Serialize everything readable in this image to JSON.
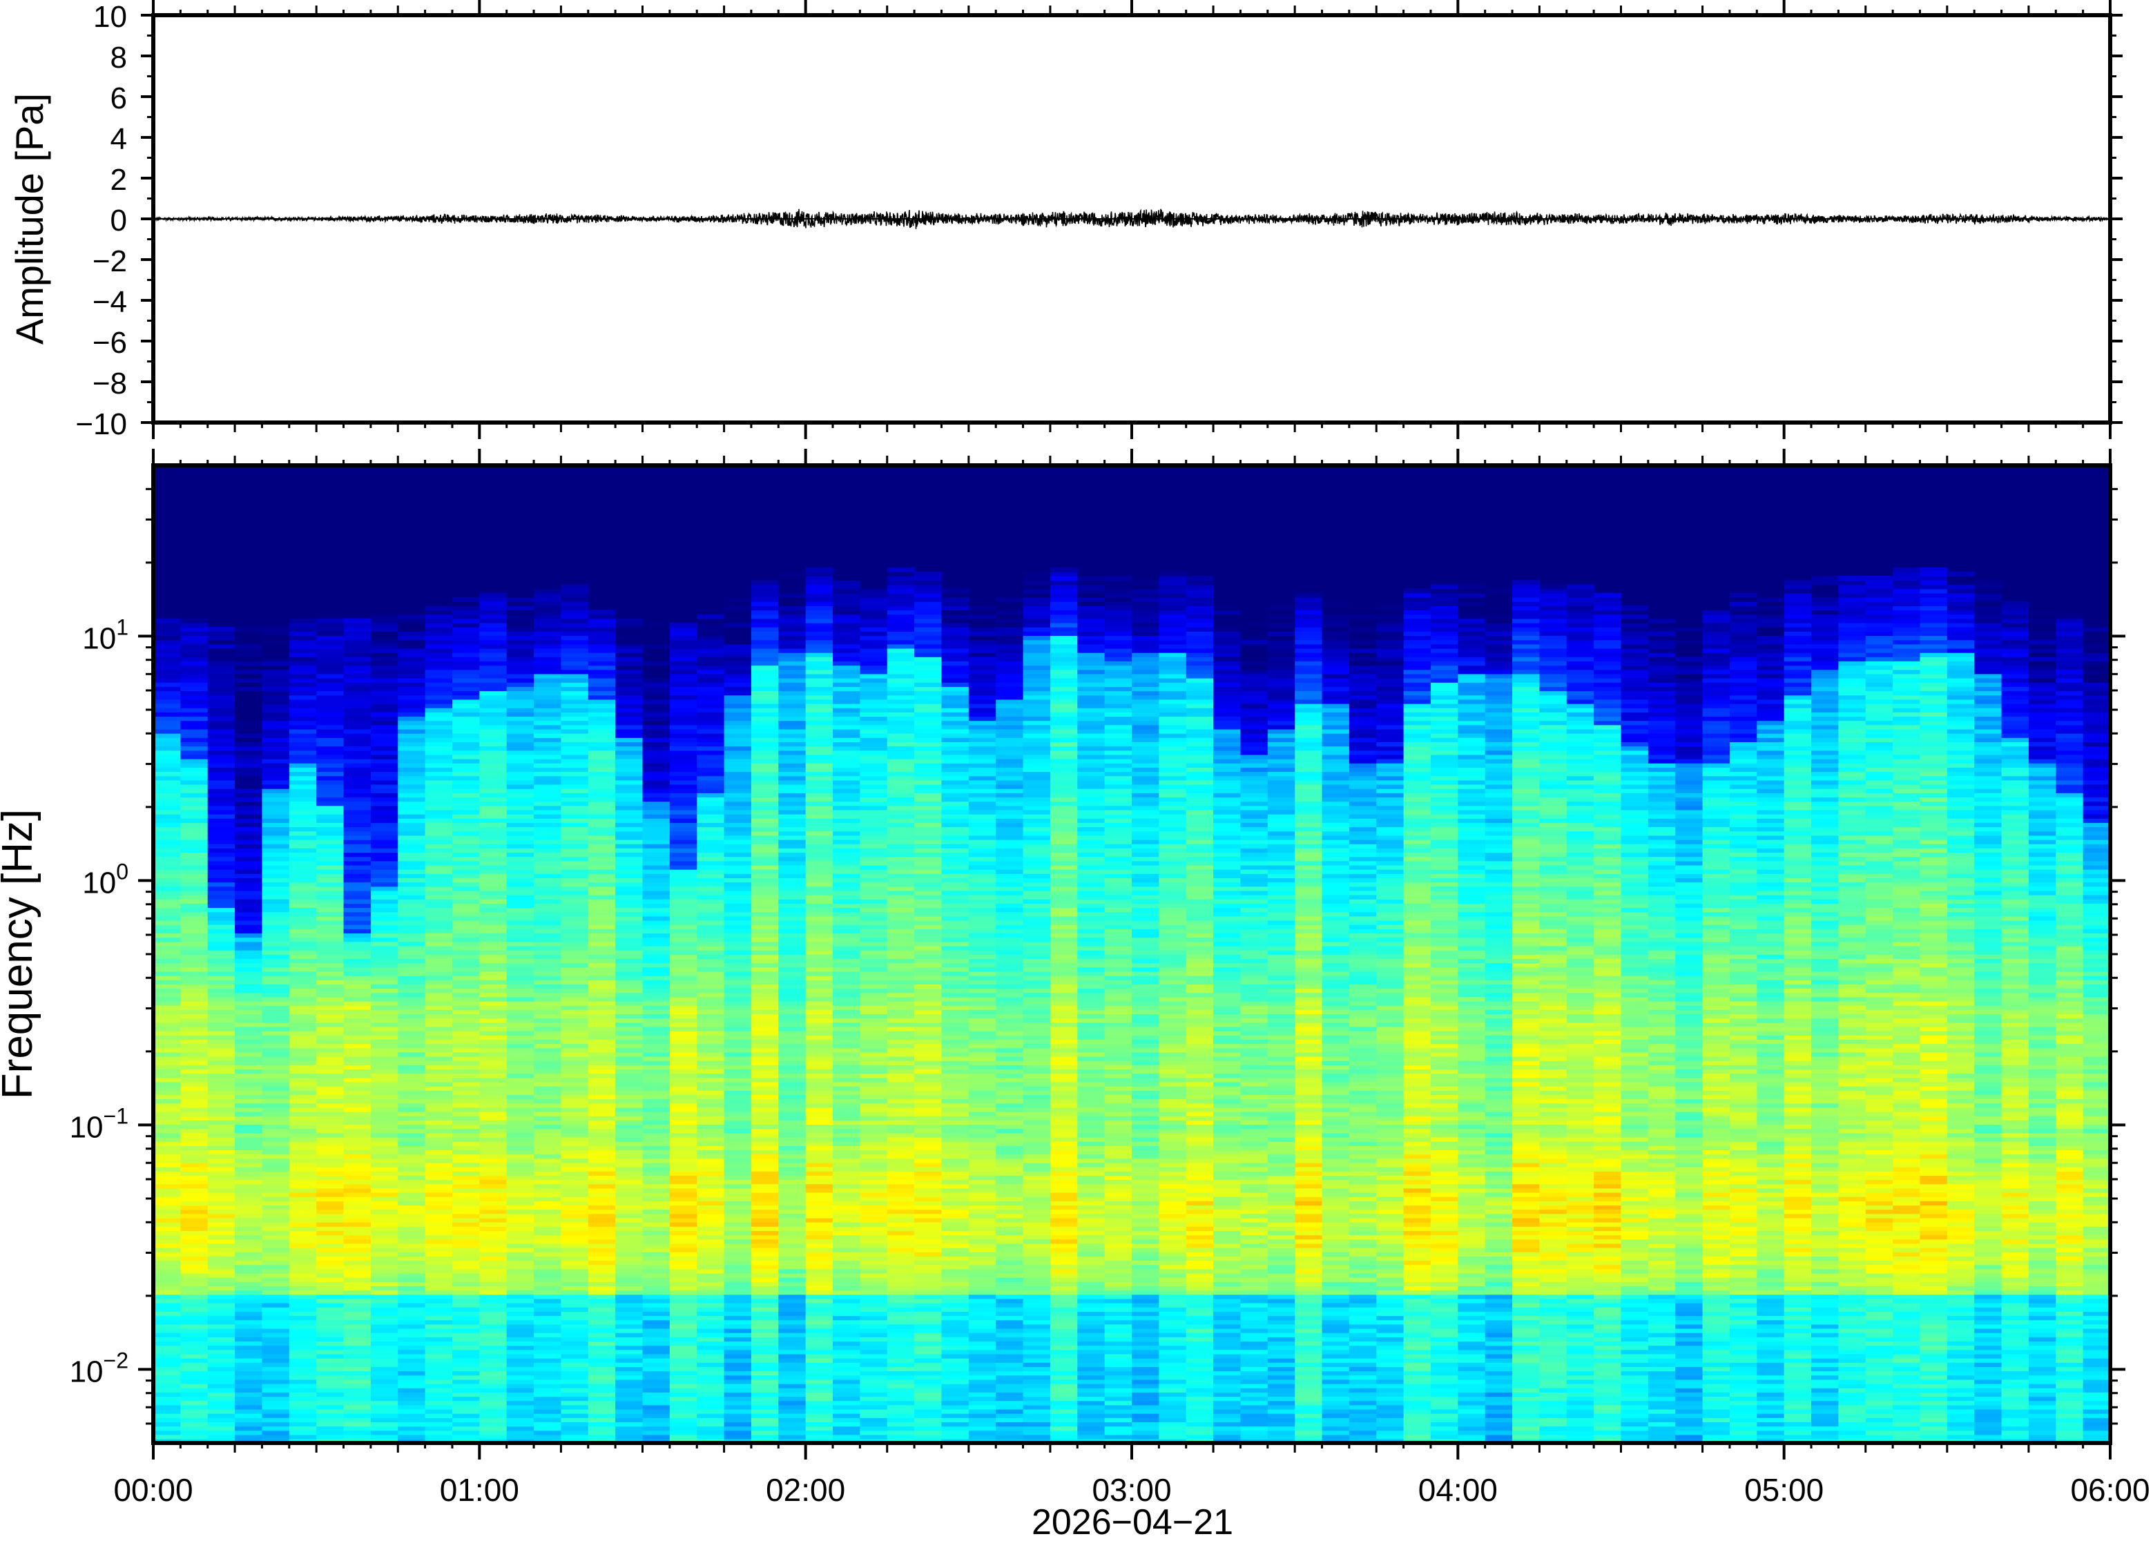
{
  "chart_data": [
    {
      "type": "line",
      "panel": "waveform",
      "ylabel": "Amplitude [Pa]",
      "ylim": [
        -10,
        10
      ],
      "yticks": [
        10,
        8,
        6,
        4,
        2,
        0,
        -2,
        -4,
        -6,
        -8,
        -10
      ],
      "ytick_labels": [
        "10",
        "8",
        "6",
        "4",
        "2",
        "0",
        "−2",
        "−4",
        "−6",
        "−8",
        "−10"
      ],
      "xlim_hours": [
        0,
        6
      ],
      "baseline": 0,
      "line_color": "#000000",
      "envelope": {
        "x_hours": [
          0,
          0.25,
          0.5,
          0.8,
          0.9,
          1.0,
          1.2,
          1.5,
          1.7,
          1.85,
          2.0,
          2.1,
          2.25,
          2.32,
          2.45,
          2.6,
          2.75,
          2.9,
          3.05,
          3.15,
          3.3,
          3.5,
          3.72,
          3.9,
          4.0,
          4.1,
          4.3,
          4.5,
          4.65,
          4.8,
          5.0,
          5.2,
          5.4,
          5.6,
          5.8,
          6.0
        ],
        "peak_pa": [
          0.08,
          0.1,
          0.1,
          0.2,
          0.28,
          0.2,
          0.3,
          0.15,
          0.2,
          0.35,
          0.55,
          0.35,
          0.4,
          0.6,
          0.3,
          0.3,
          0.45,
          0.4,
          0.55,
          0.45,
          0.3,
          0.25,
          0.5,
          0.3,
          0.35,
          0.4,
          0.3,
          0.25,
          0.35,
          0.25,
          0.3,
          0.2,
          0.25,
          0.3,
          0.15,
          0.1
        ]
      }
    },
    {
      "type": "heatmap",
      "panel": "spectrogram",
      "ylabel": "Frequency [Hz]",
      "xlabel": "2026−04−21",
      "yscale": "log",
      "ylim_hz": [
        0.005,
        50
      ],
      "yticks_hz": [
        0.01,
        0.1,
        1,
        10
      ],
      "ytick_labels": [
        {
          "base": "10",
          "exp": "−2"
        },
        {
          "base": "10",
          "exp": "−1"
        },
        {
          "base": "10",
          "exp": "0"
        },
        {
          "base": "10",
          "exp": "1"
        }
      ],
      "xticks_hours": [
        0,
        1,
        2,
        3,
        4,
        5,
        6
      ],
      "xtick_labels": [
        "00:00",
        "01:00",
        "02:00",
        "03:00",
        "04:00",
        "05:00",
        "06:00"
      ],
      "colormap": [
        "#000080",
        "#0000ff",
        "#0080ff",
        "#00ffff",
        "#80ff80",
        "#ffff00",
        "#ff8000"
      ],
      "cutoff": {
        "x_hours": [
          0,
          0.1,
          0.2,
          0.3,
          0.4,
          0.5,
          0.6,
          0.7,
          0.8,
          0.9,
          1.0,
          1.1,
          1.2,
          1.3,
          1.4,
          1.5,
          1.6,
          1.7,
          1.8,
          1.9,
          2.0,
          2.1,
          2.2,
          2.3,
          2.4,
          2.5,
          2.6,
          2.7,
          2.8,
          2.9,
          3.0,
          3.1,
          3.2,
          3.3,
          3.4,
          3.5,
          3.6,
          3.7,
          3.8,
          3.9,
          4.0,
          4.1,
          4.2,
          4.3,
          4.4,
          4.5,
          4.6,
          4.7,
          4.8,
          4.9,
          5.0,
          5.1,
          5.2,
          5.3,
          5.4,
          5.5,
          5.6,
          5.7,
          5.8,
          5.9,
          6.0
        ],
        "dark_below_hz": [
          4,
          4,
          0.8,
          0.6,
          3,
          3,
          0.6,
          0.6,
          5,
          5,
          6,
          6,
          7,
          7,
          5,
          3,
          0.8,
          2,
          6,
          8,
          9,
          8,
          7,
          9,
          8,
          5,
          4,
          10,
          10,
          8,
          8,
          9,
          7,
          4,
          3,
          5,
          6,
          3,
          3,
          6,
          7,
          7,
          7,
          6,
          5,
          4,
          3,
          3,
          3,
          4,
          5,
          7,
          8,
          8,
          8,
          9,
          8,
          4,
          3,
          2,
          1.5
        ],
        "deep_above_hz": [
          12,
          12,
          11,
          11,
          12,
          12,
          12,
          12,
          14,
          14,
          15,
          15,
          16,
          16,
          12,
          12,
          11,
          13,
          15,
          18,
          20,
          18,
          17,
          19,
          18,
          14,
          14,
          19,
          19,
          18,
          18,
          19,
          18,
          15,
          14,
          14,
          16,
          14,
          14,
          16,
          16,
          17,
          17,
          16,
          16,
          14,
          13,
          14,
          14,
          15,
          16,
          18,
          18,
          18,
          19,
          19,
          18,
          14,
          13,
          12,
          12
        ]
      }
    }
  ]
}
